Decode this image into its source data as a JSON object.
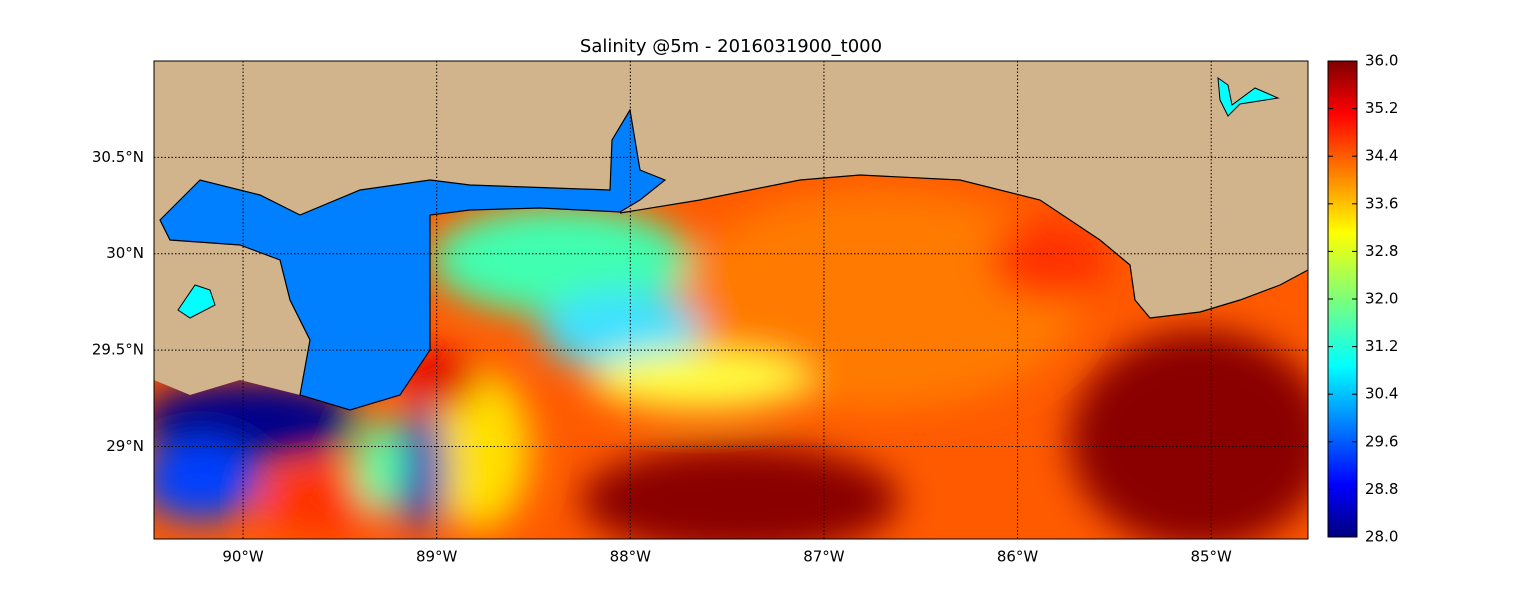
{
  "chart_data": {
    "type": "map",
    "title": "Salinity @5m - 2016031900_t000",
    "xlim": [
      -90.46,
      -84.5
    ],
    "xticks": [
      {
        "value": -90,
        "label": "90°W"
      },
      {
        "value": -89,
        "label": "89°W"
      },
      {
        "value": -88,
        "label": "88°W"
      },
      {
        "value": -87,
        "label": "87°W"
      },
      {
        "value": -86,
        "label": "86°W"
      },
      {
        "value": -85,
        "label": "85°W"
      }
    ],
    "ylim": [
      28.52,
      31.0
    ],
    "yticks": [
      {
        "value": 29,
        "label": "29°N"
      },
      {
        "value": 29.5,
        "label": "29.5°N"
      },
      {
        "value": 30,
        "label": "30°N"
      },
      {
        "value": 30.5,
        "label": "30.5°N"
      }
    ],
    "grid": true,
    "colorbar": {
      "lim": [
        28,
        36
      ],
      "ticks": [
        {
          "value": 28,
          "label": "28.0"
        },
        28.8,
        29.6,
        30.4,
        31.2,
        {
          "value": 32,
          "label": "32.0"
        },
        32.8,
        33.6,
        34.4,
        35.2,
        {
          "value": 36,
          "label": "36.0"
        }
      ]
    }
  }
}
